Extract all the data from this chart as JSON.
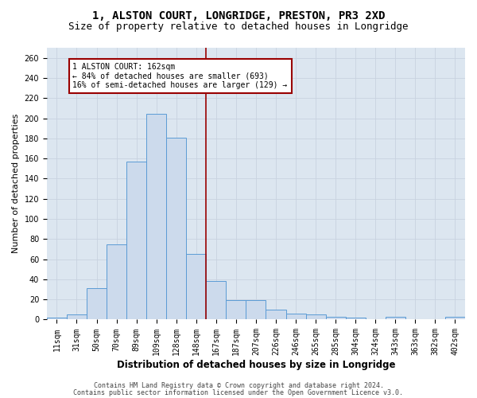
{
  "title": "1, ALSTON COURT, LONGRIDGE, PRESTON, PR3 2XD",
  "subtitle": "Size of property relative to detached houses in Longridge",
  "xlabel": "Distribution of detached houses by size in Longridge",
  "ylabel": "Number of detached properties",
  "bar_labels": [
    "11sqm",
    "31sqm",
    "50sqm",
    "70sqm",
    "89sqm",
    "109sqm",
    "128sqm",
    "148sqm",
    "167sqm",
    "187sqm",
    "207sqm",
    "226sqm",
    "246sqm",
    "265sqm",
    "285sqm",
    "304sqm",
    "324sqm",
    "343sqm",
    "363sqm",
    "382sqm",
    "402sqm"
  ],
  "bar_values": [
    2,
    5,
    31,
    75,
    157,
    204,
    181,
    65,
    38,
    19,
    19,
    10,
    6,
    5,
    3,
    2,
    0,
    3,
    0,
    0,
    3
  ],
  "bar_color": "#ccdaec",
  "bar_edge_color": "#5b9bd5",
  "vline_x": 7.5,
  "vline_color": "#990000",
  "annotation_text": "1 ALSTON COURT: 162sqm\n← 84% of detached houses are smaller (693)\n16% of semi-detached houses are larger (129) →",
  "annotation_box_color": "#990000",
  "ylim": [
    0,
    270
  ],
  "yticks": [
    0,
    20,
    40,
    60,
    80,
    100,
    120,
    140,
    160,
    180,
    200,
    220,
    240,
    260
  ],
  "grid_color": "#c8d2e0",
  "background_color": "#dce6f0",
  "footer1": "Contains HM Land Registry data © Crown copyright and database right 2024.",
  "footer2": "Contains public sector information licensed under the Open Government Licence v3.0.",
  "title_fontsize": 10,
  "subtitle_fontsize": 9,
  "xlabel_fontsize": 8.5,
  "ylabel_fontsize": 8,
  "tick_fontsize": 7,
  "annotation_fontsize": 7,
  "footer_fontsize": 6
}
